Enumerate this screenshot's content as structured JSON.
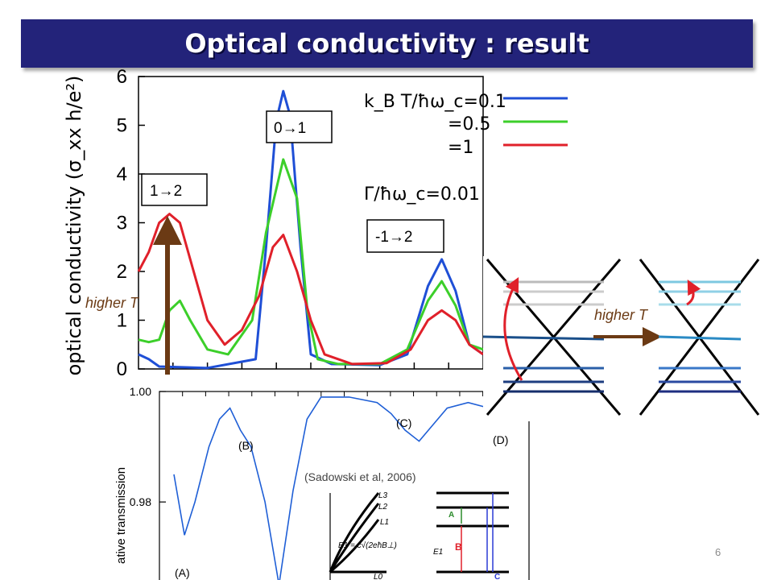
{
  "slide": {
    "title": "Optical conductivity : result",
    "page_number": "6"
  },
  "annotations": {
    "higher_t_left": "higher T",
    "higher_t_right": "higher T",
    "citation": "(Sadowski et al, 2006)",
    "box_0_1": "0→1",
    "box_1_2": "1→2",
    "box_m1_2": "-1→2"
  },
  "legend": {
    "line1": "k_B T/ħω_c=0.1",
    "line2": "=0.5",
    "line3": "=1",
    "gamma": "Γ/ħω_c=0.01"
  },
  "colors": {
    "title_bg": "#23237a",
    "blue": "#1f4fd6",
    "green": "#3ccf2a",
    "red": "#e0202a",
    "arrow_brown": "#6b3a14"
  },
  "chart_data": [
    {
      "type": "line",
      "ylabel": "optical conductivity (σ_xx h/e²)",
      "y_ticks": [
        "0",
        "1",
        "2",
        "3",
        "4",
        "5",
        "6"
      ],
      "ylim": [
        0,
        6
      ],
      "series": [
        {
          "name": "k_B T/ħω_c=0.1",
          "color": "#1f4fd6",
          "points": [
            [
              0,
              0.3
            ],
            [
              0.03,
              0.2
            ],
            [
              0.06,
              0.05
            ],
            [
              0.2,
              0.02
            ],
            [
              0.34,
              0.2
            ],
            [
              0.37,
              2.5
            ],
            [
              0.4,
              5.1
            ],
            [
              0.42,
              5.7
            ],
            [
              0.44,
              5.2
            ],
            [
              0.47,
              2.5
            ],
            [
              0.5,
              0.3
            ],
            [
              0.56,
              0.1
            ],
            [
              0.7,
              0.08
            ],
            [
              0.78,
              0.3
            ],
            [
              0.84,
              1.7
            ],
            [
              0.88,
              2.25
            ],
            [
              0.92,
              1.6
            ],
            [
              0.96,
              0.5
            ],
            [
              1,
              0.3
            ]
          ]
        },
        {
          "name": "=0.5",
          "color": "#3ccf2a",
          "points": [
            [
              0,
              0.6
            ],
            [
              0.03,
              0.55
            ],
            [
              0.06,
              0.6
            ],
            [
              0.09,
              1.2
            ],
            [
              0.12,
              1.4
            ],
            [
              0.15,
              1.0
            ],
            [
              0.2,
              0.4
            ],
            [
              0.26,
              0.3
            ],
            [
              0.33,
              1.0
            ],
            [
              0.37,
              2.8
            ],
            [
              0.42,
              4.3
            ],
            [
              0.46,
              3.5
            ],
            [
              0.49,
              1.2
            ],
            [
              0.52,
              0.2
            ],
            [
              0.58,
              0.1
            ],
            [
              0.7,
              0.1
            ],
            [
              0.78,
              0.4
            ],
            [
              0.84,
              1.4
            ],
            [
              0.88,
              1.8
            ],
            [
              0.92,
              1.3
            ],
            [
              0.96,
              0.5
            ],
            [
              1,
              0.4
            ]
          ]
        },
        {
          "name": "=1",
          "color": "#e0202a",
          "points": [
            [
              0,
              2.0
            ],
            [
              0.03,
              2.4
            ],
            [
              0.06,
              3.0
            ],
            [
              0.09,
              3.18
            ],
            [
              0.12,
              3.0
            ],
            [
              0.16,
              2.0
            ],
            [
              0.2,
              1.0
            ],
            [
              0.25,
              0.5
            ],
            [
              0.3,
              0.8
            ],
            [
              0.35,
              1.5
            ],
            [
              0.39,
              2.5
            ],
            [
              0.42,
              2.75
            ],
            [
              0.46,
              2.0
            ],
            [
              0.5,
              1.0
            ],
            [
              0.54,
              0.3
            ],
            [
              0.62,
              0.1
            ],
            [
              0.72,
              0.12
            ],
            [
              0.79,
              0.4
            ],
            [
              0.84,
              1.0
            ],
            [
              0.88,
              1.2
            ],
            [
              0.92,
              1.0
            ],
            [
              0.96,
              0.5
            ],
            [
              1,
              0.3
            ]
          ]
        }
      ]
    },
    {
      "type": "line",
      "ylabel": "ative transmission",
      "y_ticks": [
        "1.00",
        "0.98"
      ],
      "ylim": [
        0.965,
        1.0
      ],
      "labels": [
        "(A)",
        "(B)",
        "(C)",
        "(D)"
      ],
      "series": [
        {
          "name": "transmission",
          "color": "#1f5fd6",
          "points": [
            [
              0,
              0.985
            ],
            [
              0.03,
              0.974
            ],
            [
              0.06,
              0.98
            ],
            [
              0.1,
              0.99
            ],
            [
              0.13,
              0.995
            ],
            [
              0.16,
              0.997
            ],
            [
              0.19,
              0.993
            ],
            [
              0.22,
              0.99
            ],
            [
              0.26,
              0.98
            ],
            [
              0.3,
              0.965
            ],
            [
              0.34,
              0.982
            ],
            [
              0.38,
              0.995
            ],
            [
              0.42,
              0.999
            ],
            [
              0.5,
              0.999
            ],
            [
              0.58,
              0.998
            ],
            [
              0.62,
              0.996
            ],
            [
              0.66,
              0.993
            ],
            [
              0.7,
              0.991
            ],
            [
              0.74,
              0.994
            ],
            [
              0.78,
              0.997
            ],
            [
              0.84,
              0.998
            ],
            [
              0.9,
              0.997
            ],
            [
              0.95,
              0.996
            ],
            [
              1,
              0.996
            ]
          ]
        }
      ]
    }
  ],
  "inset": {
    "labels": [
      "L3",
      "L2",
      "L1",
      "L0",
      "B",
      "E1 = c̃√(2eħB⊥)",
      "E1",
      "A",
      "B",
      "C"
    ]
  }
}
